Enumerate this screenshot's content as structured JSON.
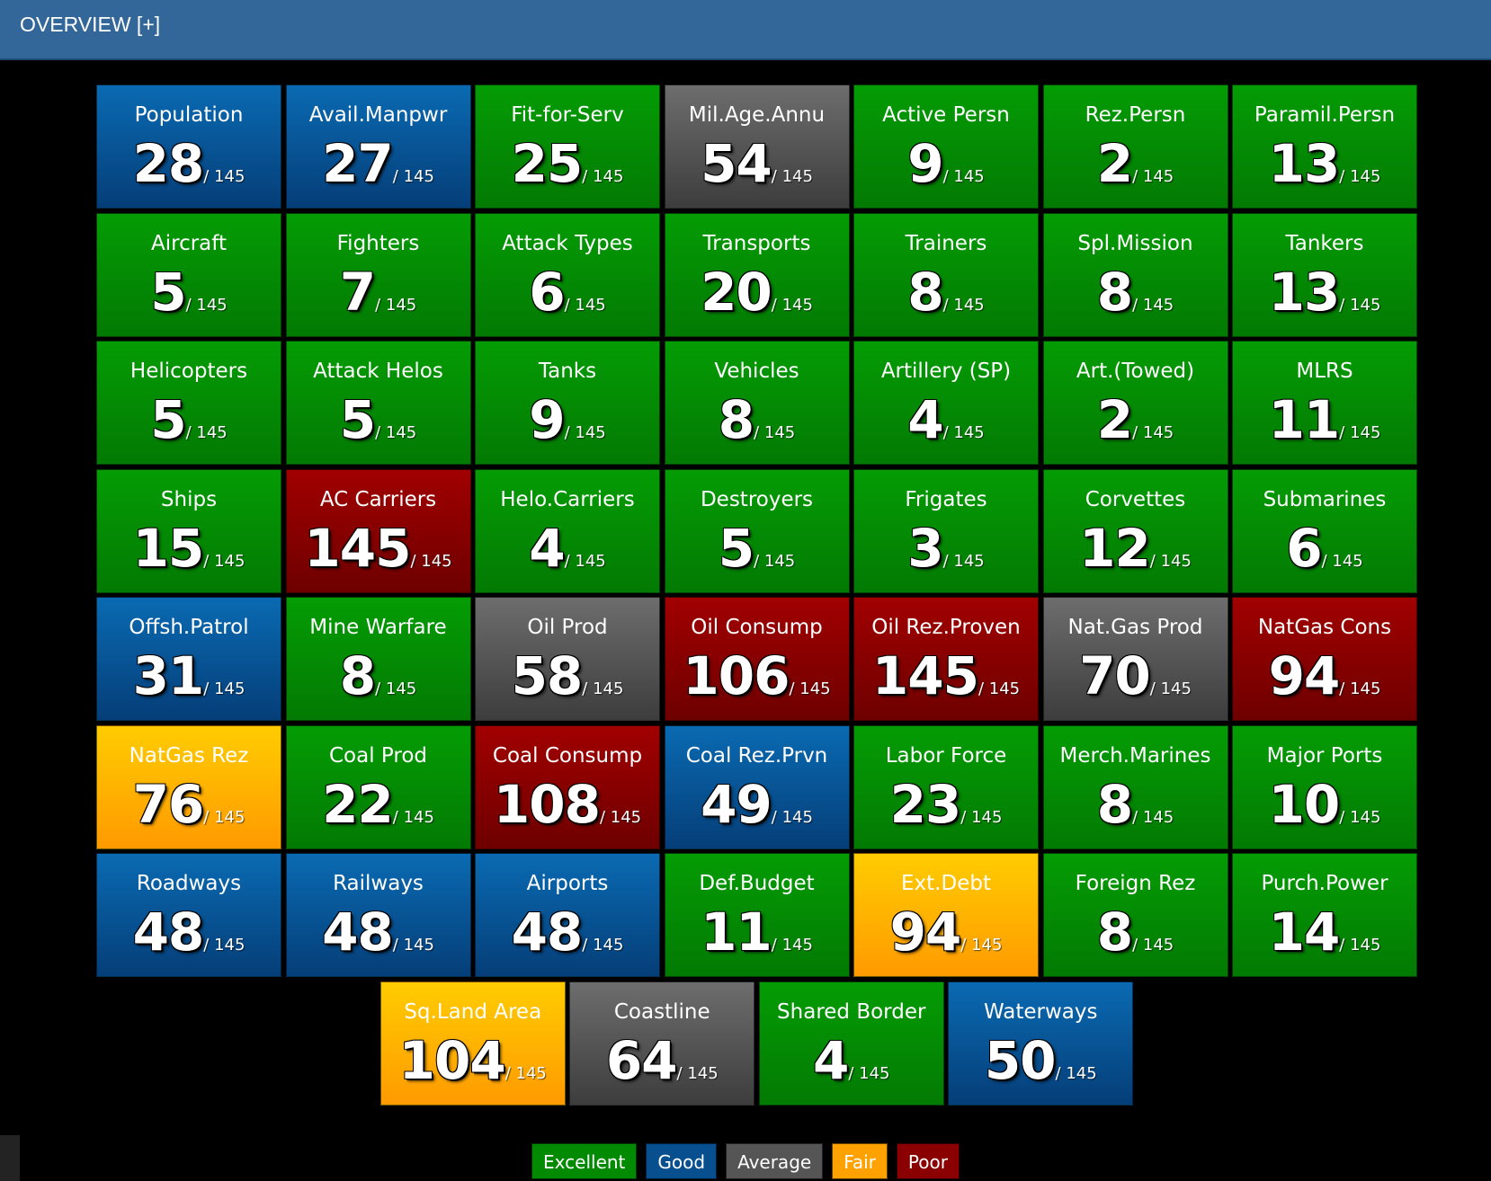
{
  "header": {
    "title": "OVERVIEW [+]"
  },
  "total": "/ 145",
  "tiles": [
    {
      "label": "Population",
      "rank": "28",
      "status": "good"
    },
    {
      "label": "Avail.Manpwr",
      "rank": "27",
      "status": "good"
    },
    {
      "label": "Fit-for-Serv",
      "rank": "25",
      "status": "excellent"
    },
    {
      "label": "Mil.Age.Annu",
      "rank": "54",
      "status": "average"
    },
    {
      "label": "Active Persn",
      "rank": "9",
      "status": "excellent"
    },
    {
      "label": "Rez.Persn",
      "rank": "2",
      "status": "excellent"
    },
    {
      "label": "Paramil.Persn",
      "rank": "13",
      "status": "excellent"
    },
    {
      "label": "Aircraft",
      "rank": "5",
      "status": "excellent"
    },
    {
      "label": "Fighters",
      "rank": "7",
      "status": "excellent"
    },
    {
      "label": "Attack Types",
      "rank": "6",
      "status": "excellent"
    },
    {
      "label": "Transports",
      "rank": "20",
      "status": "excellent"
    },
    {
      "label": "Trainers",
      "rank": "8",
      "status": "excellent"
    },
    {
      "label": "Spl.Mission",
      "rank": "8",
      "status": "excellent"
    },
    {
      "label": "Tankers",
      "rank": "13",
      "status": "excellent"
    },
    {
      "label": "Helicopters",
      "rank": "5",
      "status": "excellent"
    },
    {
      "label": "Attack Helos",
      "rank": "5",
      "status": "excellent"
    },
    {
      "label": "Tanks",
      "rank": "9",
      "status": "excellent"
    },
    {
      "label": "Vehicles",
      "rank": "8",
      "status": "excellent"
    },
    {
      "label": "Artillery (SP)",
      "rank": "4",
      "status": "excellent"
    },
    {
      "label": "Art.(Towed)",
      "rank": "2",
      "status": "excellent"
    },
    {
      "label": "MLRS",
      "rank": "11",
      "status": "excellent"
    },
    {
      "label": "Ships",
      "rank": "15",
      "status": "excellent"
    },
    {
      "label": "AC Carriers",
      "rank": "145",
      "status": "poor"
    },
    {
      "label": "Helo.Carriers",
      "rank": "4",
      "status": "excellent"
    },
    {
      "label": "Destroyers",
      "rank": "5",
      "status": "excellent"
    },
    {
      "label": "Frigates",
      "rank": "3",
      "status": "excellent"
    },
    {
      "label": "Corvettes",
      "rank": "12",
      "status": "excellent"
    },
    {
      "label": "Submarines",
      "rank": "6",
      "status": "excellent"
    },
    {
      "label": "Offsh.Patrol",
      "rank": "31",
      "status": "good"
    },
    {
      "label": "Mine Warfare",
      "rank": "8",
      "status": "excellent"
    },
    {
      "label": "Oil Prod",
      "rank": "58",
      "status": "average"
    },
    {
      "label": "Oil Consump",
      "rank": "106",
      "status": "poor"
    },
    {
      "label": "Oil Rez.Proven",
      "rank": "145",
      "status": "poor"
    },
    {
      "label": "Nat.Gas Prod",
      "rank": "70",
      "status": "average"
    },
    {
      "label": "NatGas Cons",
      "rank": "94",
      "status": "poor"
    },
    {
      "label": "NatGas Rez",
      "rank": "76",
      "status": "fair"
    },
    {
      "label": "Coal Prod",
      "rank": "22",
      "status": "excellent"
    },
    {
      "label": "Coal Consump",
      "rank": "108",
      "status": "poor"
    },
    {
      "label": "Coal Rez.Prvn",
      "rank": "49",
      "status": "good"
    },
    {
      "label": "Labor Force",
      "rank": "23",
      "status": "excellent"
    },
    {
      "label": "Merch.Marines",
      "rank": "8",
      "status": "excellent"
    },
    {
      "label": "Major Ports",
      "rank": "10",
      "status": "excellent"
    },
    {
      "label": "Roadways",
      "rank": "48",
      "status": "good"
    },
    {
      "label": "Railways",
      "rank": "48",
      "status": "good"
    },
    {
      "label": "Airports",
      "rank": "48",
      "status": "good"
    },
    {
      "label": "Def.Budget",
      "rank": "11",
      "status": "excellent"
    },
    {
      "label": "Ext.Debt",
      "rank": "94",
      "status": "fair"
    },
    {
      "label": "Foreign Rez",
      "rank": "8",
      "status": "excellent"
    },
    {
      "label": "Purch.Power",
      "rank": "14",
      "status": "excellent"
    },
    {
      "label": "Sq.Land Area",
      "rank": "104",
      "status": "fair"
    },
    {
      "label": "Coastline",
      "rank": "64",
      "status": "average"
    },
    {
      "label": "Shared Border",
      "rank": "4",
      "status": "excellent"
    },
    {
      "label": "Waterways",
      "rank": "50",
      "status": "good"
    }
  ],
  "legend": [
    {
      "label": "Excellent",
      "status": "excellent"
    },
    {
      "label": "Good",
      "status": "good"
    },
    {
      "label": "Average",
      "status": "average"
    },
    {
      "label": "Fair",
      "status": "fair"
    },
    {
      "label": "Poor",
      "status": "poor"
    }
  ],
  "colors": {
    "header": "#336699",
    "excellent": "#038a03",
    "good": "#084f8f",
    "average": "#555555",
    "fair": "#ffa200",
    "poor": "#8a0000"
  }
}
